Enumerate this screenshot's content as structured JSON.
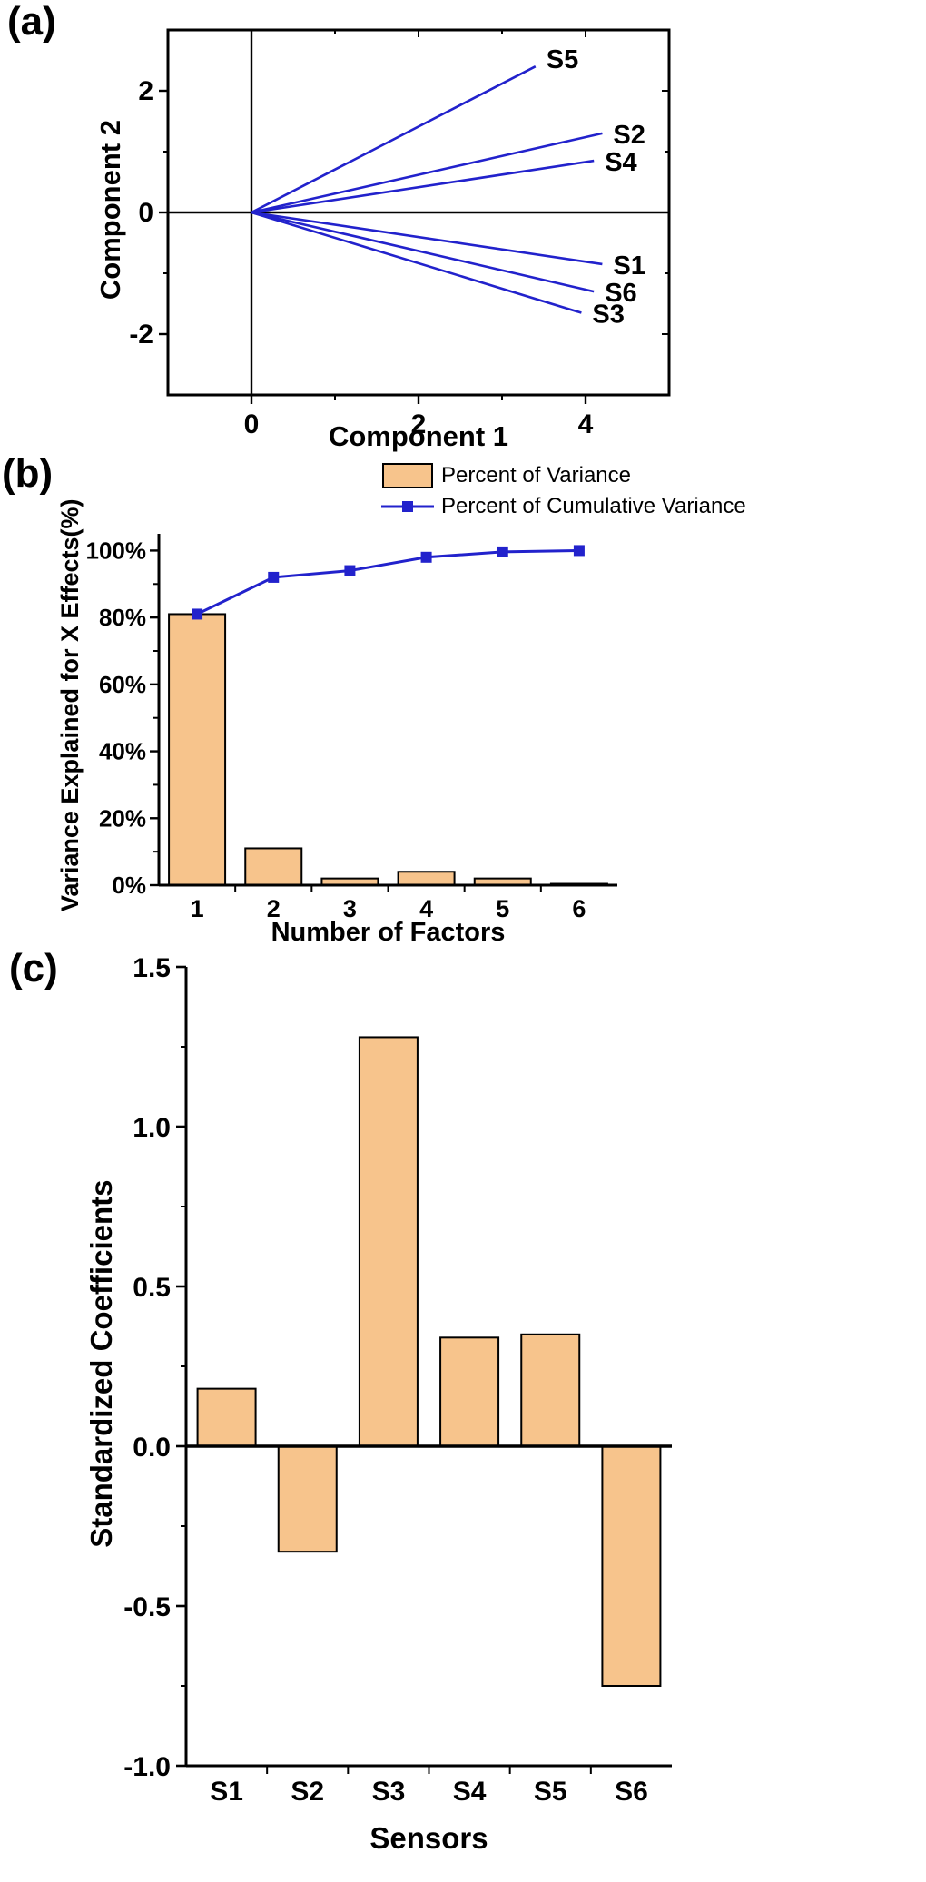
{
  "panels": [
    {
      "id": "a",
      "label": "(a)"
    },
    {
      "id": "b",
      "label": "(b)"
    },
    {
      "id": "c",
      "label": "(c)"
    }
  ],
  "colors": {
    "bar_fill": "#F7C48C",
    "line_blue": "#2222CC",
    "axis_black": "#000000"
  },
  "chart_data": [
    {
      "id": "pca-loading-plot",
      "type": "line",
      "title": "",
      "xlabel": "Component 1",
      "ylabel": "Component 2",
      "xlim": [
        -1,
        5
      ],
      "ylim": [
        -3,
        3
      ],
      "xticks": [
        0,
        2,
        4
      ],
      "xtick_labels": [
        "0",
        "2",
        "4"
      ],
      "yticks": [
        -2,
        0,
        2
      ],
      "ytick_labels": [
        "-2",
        "0",
        "2"
      ],
      "xminor": [
        1,
        3
      ],
      "yminor": [
        -1,
        1
      ],
      "color": "#2222CC",
      "origin": [
        0,
        0
      ],
      "vectors": [
        {
          "name": "S5",
          "x": 3.4,
          "y": 2.4
        },
        {
          "name": "S2",
          "x": 4.2,
          "y": 1.3
        },
        {
          "name": "S4",
          "x": 4.1,
          "y": 0.85
        },
        {
          "name": "S1",
          "x": 4.2,
          "y": -0.85
        },
        {
          "name": "S6",
          "x": 4.1,
          "y": -1.3
        },
        {
          "name": "S3",
          "x": 3.95,
          "y": -1.65
        }
      ]
    },
    {
      "id": "variance-explained",
      "type": "bar",
      "title": "",
      "xlabel": "Number of Factors",
      "ylabel": "Variance Explained for X Effects(%)",
      "categories": [
        "1",
        "2",
        "3",
        "4",
        "5",
        "6"
      ],
      "ylim": [
        0,
        105
      ],
      "yticks": [
        0,
        20,
        40,
        60,
        80,
        100
      ],
      "ytick_labels": [
        "0%",
        "20%",
        "40%",
        "60%",
        "80%",
        "100%"
      ],
      "yminor": [
        10,
        30,
        50,
        70,
        90
      ],
      "legend_position": "top-right",
      "series": [
        {
          "name": "Percent of Variance",
          "type": "bar",
          "values": [
            81,
            11,
            2,
            4,
            2,
            0.4
          ]
        },
        {
          "name": "Percent of Cumulative Variance",
          "type": "line",
          "values": [
            81,
            92,
            94,
            98,
            99.6,
            100
          ]
        }
      ]
    },
    {
      "id": "standardized-coefficients",
      "type": "bar",
      "title": "",
      "xlabel": "Sensors",
      "ylabel": "Standardized Coefficients",
      "categories": [
        "S1",
        "S2",
        "S3",
        "S4",
        "S5",
        "S6"
      ],
      "values": [
        0.18,
        -0.33,
        1.28,
        0.34,
        0.35,
        -0.75
      ],
      "ylim": [
        -1.0,
        1.5
      ],
      "yticks": [
        -1.0,
        -0.5,
        0.0,
        0.5,
        1.0,
        1.5
      ],
      "ytick_labels": [
        "-1.0",
        "-0.5",
        "0.0",
        "0.5",
        "1.0",
        "1.5"
      ],
      "yminor": [
        -0.75,
        -0.25,
        0.25,
        0.75,
        1.25
      ]
    }
  ]
}
